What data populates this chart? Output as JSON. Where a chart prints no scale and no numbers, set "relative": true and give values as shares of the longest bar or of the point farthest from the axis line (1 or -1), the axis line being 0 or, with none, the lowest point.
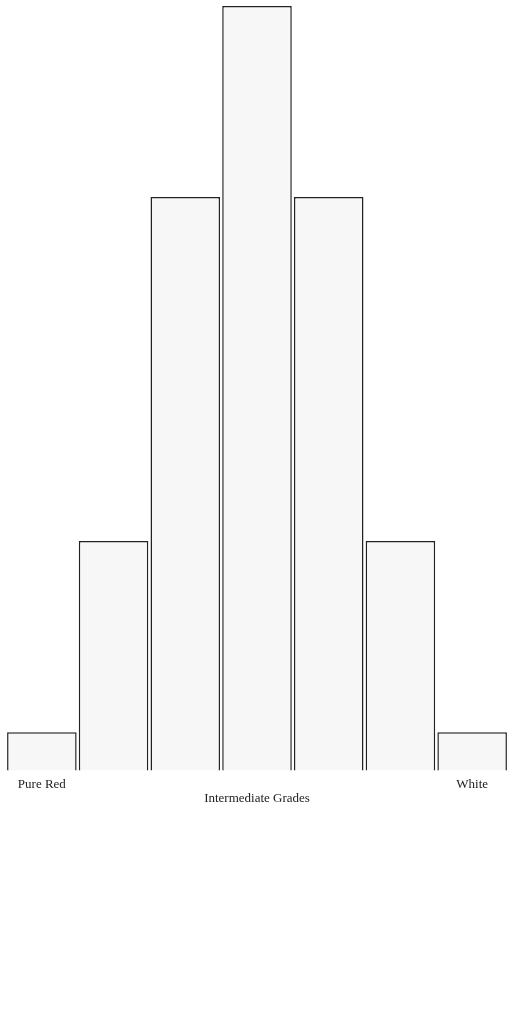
{
  "chart_data": {
    "type": "bar",
    "relative": true,
    "categories": [
      "Pure Red",
      null,
      null,
      null,
      null,
      null,
      "White"
    ],
    "values": [
      0.05,
      0.3,
      0.75,
      1,
      0.75,
      0.3,
      0.05
    ],
    "color": "#f7f7f7",
    "annotations": [
      "Intermediate Grades"
    ],
    "grid": false,
    "legend": false
  }
}
